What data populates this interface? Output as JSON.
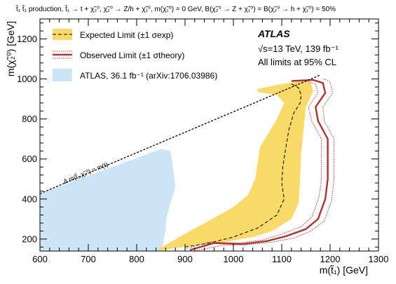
{
  "chart_data": {
    "type": "area",
    "title": "t̃₁ t̃₁ production, t̃₁ → t + χ̃₂⁰, χ̃₂⁰ → Z/h + χ̃₁⁰, m(χ̃₁⁰) = 0 GeV, B(χ̃₂⁰ → Z + χ̃₁⁰) = B(χ̃₂⁰ → h + χ̃₁⁰) = 50%",
    "xlabel": "m(t̃₁) [GeV]",
    "ylabel": "m(χ̃₂⁰) [GeV]",
    "xlim": [
      600,
      1300
    ],
    "ylim": [
      140,
      1300
    ],
    "x_ticks": [
      600,
      700,
      800,
      900,
      1000,
      1100,
      1200,
      1300
    ],
    "y_ticks": [
      200,
      400,
      600,
      800,
      1000,
      1200
    ],
    "grid": false,
    "legend_position": "top-left",
    "experiment": "ATLAS",
    "info_lines": [
      "√s=13 TeV, 139 fb⁻¹",
      "All limits at 95% CL"
    ],
    "kinematic_label": "Δ m(t̃₁,χ̃₂⁰) = m(t)",
    "kinematic_line": [
      [
        600,
        427
      ],
      [
        1180,
        1020
      ]
    ],
    "series": [
      {
        "name": "Expected Limit (±1 σexp)",
        "color": "#f8d96a",
        "line_color": "#000000",
        "band": [
          [
            845,
            140
          ],
          [
            880,
            155
          ],
          [
            930,
            170
          ],
          [
            980,
            185
          ],
          [
            1040,
            210
          ],
          [
            1080,
            240
          ],
          [
            1120,
            300
          ],
          [
            1135,
            380
          ],
          [
            1138,
            500
          ],
          [
            1140,
            620
          ],
          [
            1145,
            750
          ],
          [
            1150,
            860
          ],
          [
            1165,
            940
          ],
          [
            1160,
            985
          ],
          [
            1140,
            990
          ],
          [
            1100,
            975
          ],
          [
            1050,
            950
          ],
          [
            1050,
            935
          ],
          [
            1090,
            920
          ],
          [
            1105,
            880
          ],
          [
            1090,
            800
          ],
          [
            1070,
            720
          ],
          [
            1055,
            660
          ],
          [
            1050,
            580
          ],
          [
            1045,
            500
          ],
          [
            1030,
            420
          ],
          [
            1000,
            360
          ],
          [
            960,
            305
          ],
          [
            910,
            240
          ],
          [
            870,
            185
          ],
          [
            845,
            150
          ]
        ],
        "expected": [
          [
            900,
            160
          ],
          [
            950,
            180
          ],
          [
            1000,
            210
          ],
          [
            1050,
            255
          ],
          [
            1090,
            320
          ],
          [
            1105,
            400
          ],
          [
            1100,
            480
          ],
          [
            1102,
            560
          ],
          [
            1108,
            650
          ],
          [
            1115,
            750
          ],
          [
            1125,
            830
          ],
          [
            1138,
            880
          ],
          [
            1140,
            920
          ],
          [
            1135,
            955
          ],
          [
            1120,
            975
          ]
        ]
      },
      {
        "name": "Observed Limit (±1 σtheory)",
        "color": "#a83a3a",
        "observed": [
          [
            910,
            145
          ],
          [
            960,
            180
          ],
          [
            1020,
            175
          ],
          [
            1070,
            190
          ],
          [
            1110,
            215
          ],
          [
            1150,
            250
          ],
          [
            1175,
            300
          ],
          [
            1190,
            400
          ],
          [
            1195,
            500
          ],
          [
            1195,
            600
          ],
          [
            1195,
            700
          ],
          [
            1175,
            790
          ],
          [
            1170,
            860
          ],
          [
            1190,
            930
          ],
          [
            1185,
            980
          ],
          [
            1165,
            995
          ],
          [
            1120,
            990
          ]
        ],
        "obs_up": [
          [
            920,
            140
          ],
          [
            980,
            170
          ],
          [
            1030,
            172
          ],
          [
            1080,
            185
          ],
          [
            1125,
            205
          ],
          [
            1160,
            240
          ],
          [
            1188,
            290
          ],
          [
            1203,
            390
          ],
          [
            1208,
            500
          ],
          [
            1208,
            600
          ],
          [
            1208,
            700
          ],
          [
            1188,
            790
          ],
          [
            1185,
            860
          ],
          [
            1205,
            930
          ],
          [
            1200,
            985
          ],
          [
            1185,
            1003
          ]
        ],
        "obs_down": [
          [
            900,
            150
          ],
          [
            950,
            185
          ],
          [
            1010,
            180
          ],
          [
            1060,
            195
          ],
          [
            1100,
            225
          ],
          [
            1140,
            262
          ],
          [
            1162,
            310
          ],
          [
            1177,
            410
          ],
          [
            1182,
            500
          ],
          [
            1182,
            600
          ],
          [
            1182,
            700
          ],
          [
            1162,
            790
          ],
          [
            1155,
            860
          ],
          [
            1175,
            930
          ],
          [
            1170,
            975
          ],
          [
            1150,
            990
          ]
        ]
      },
      {
        "name": "ATLAS, 36.1 fb⁻¹ (arXiv:1706.03986)",
        "color": "#cce4f7",
        "region": [
          [
            600,
            140
          ],
          [
            600,
            427
          ],
          [
            850,
            650
          ],
          [
            870,
            640
          ],
          [
            875,
            560
          ],
          [
            880,
            460
          ],
          [
            870,
            380
          ],
          [
            862,
            310
          ],
          [
            860,
            250
          ],
          [
            855,
            180
          ],
          [
            850,
            140
          ]
        ]
      }
    ]
  }
}
